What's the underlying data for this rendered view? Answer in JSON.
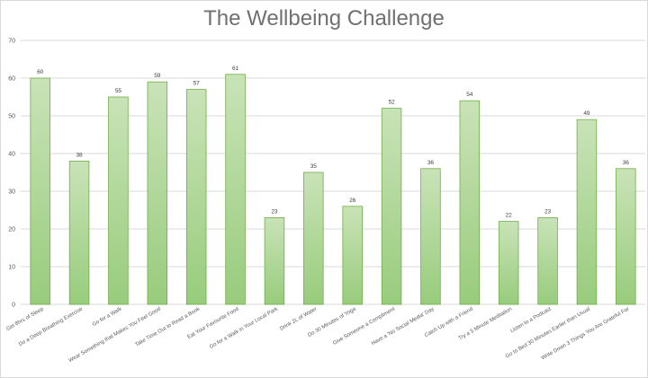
{
  "chart_data": {
    "type": "bar",
    "title": "The Wellbeing Challenge",
    "xlabel": "",
    "ylabel": "",
    "ylim": [
      0,
      70
    ],
    "yticks": [
      0,
      10,
      20,
      30,
      40,
      50,
      60,
      70
    ],
    "grid": true,
    "legend": "none",
    "bar_color": "#a9d18e",
    "bar_border_color": "#70ad47",
    "categories": [
      "Get 8hrs of Sleep",
      "Do a Deep Breathing Exercise",
      "Go for a Walk",
      "Wear Something that Makes You Feel Good",
      "Take Time Out to Read a Book",
      "Eat Your Favourite Food",
      "Go for a Walk in Your Local Park",
      "Drink 2L of Water",
      "Do 30 Minutes of Yoga",
      "Give Someone a Compliment",
      "Have a 'No Social Media' Day",
      "Catch Up with a Friend",
      "Try a 5 Minute Meditation",
      "Listen to a Podcast",
      "Go to Bed 30 Minutes Earlier than Usual",
      "Write Down 3 Things You Are Grateful For"
    ],
    "values": [
      60,
      38,
      55,
      59,
      57,
      61,
      23,
      35,
      26,
      52,
      36,
      54,
      22,
      23,
      49,
      36
    ]
  }
}
